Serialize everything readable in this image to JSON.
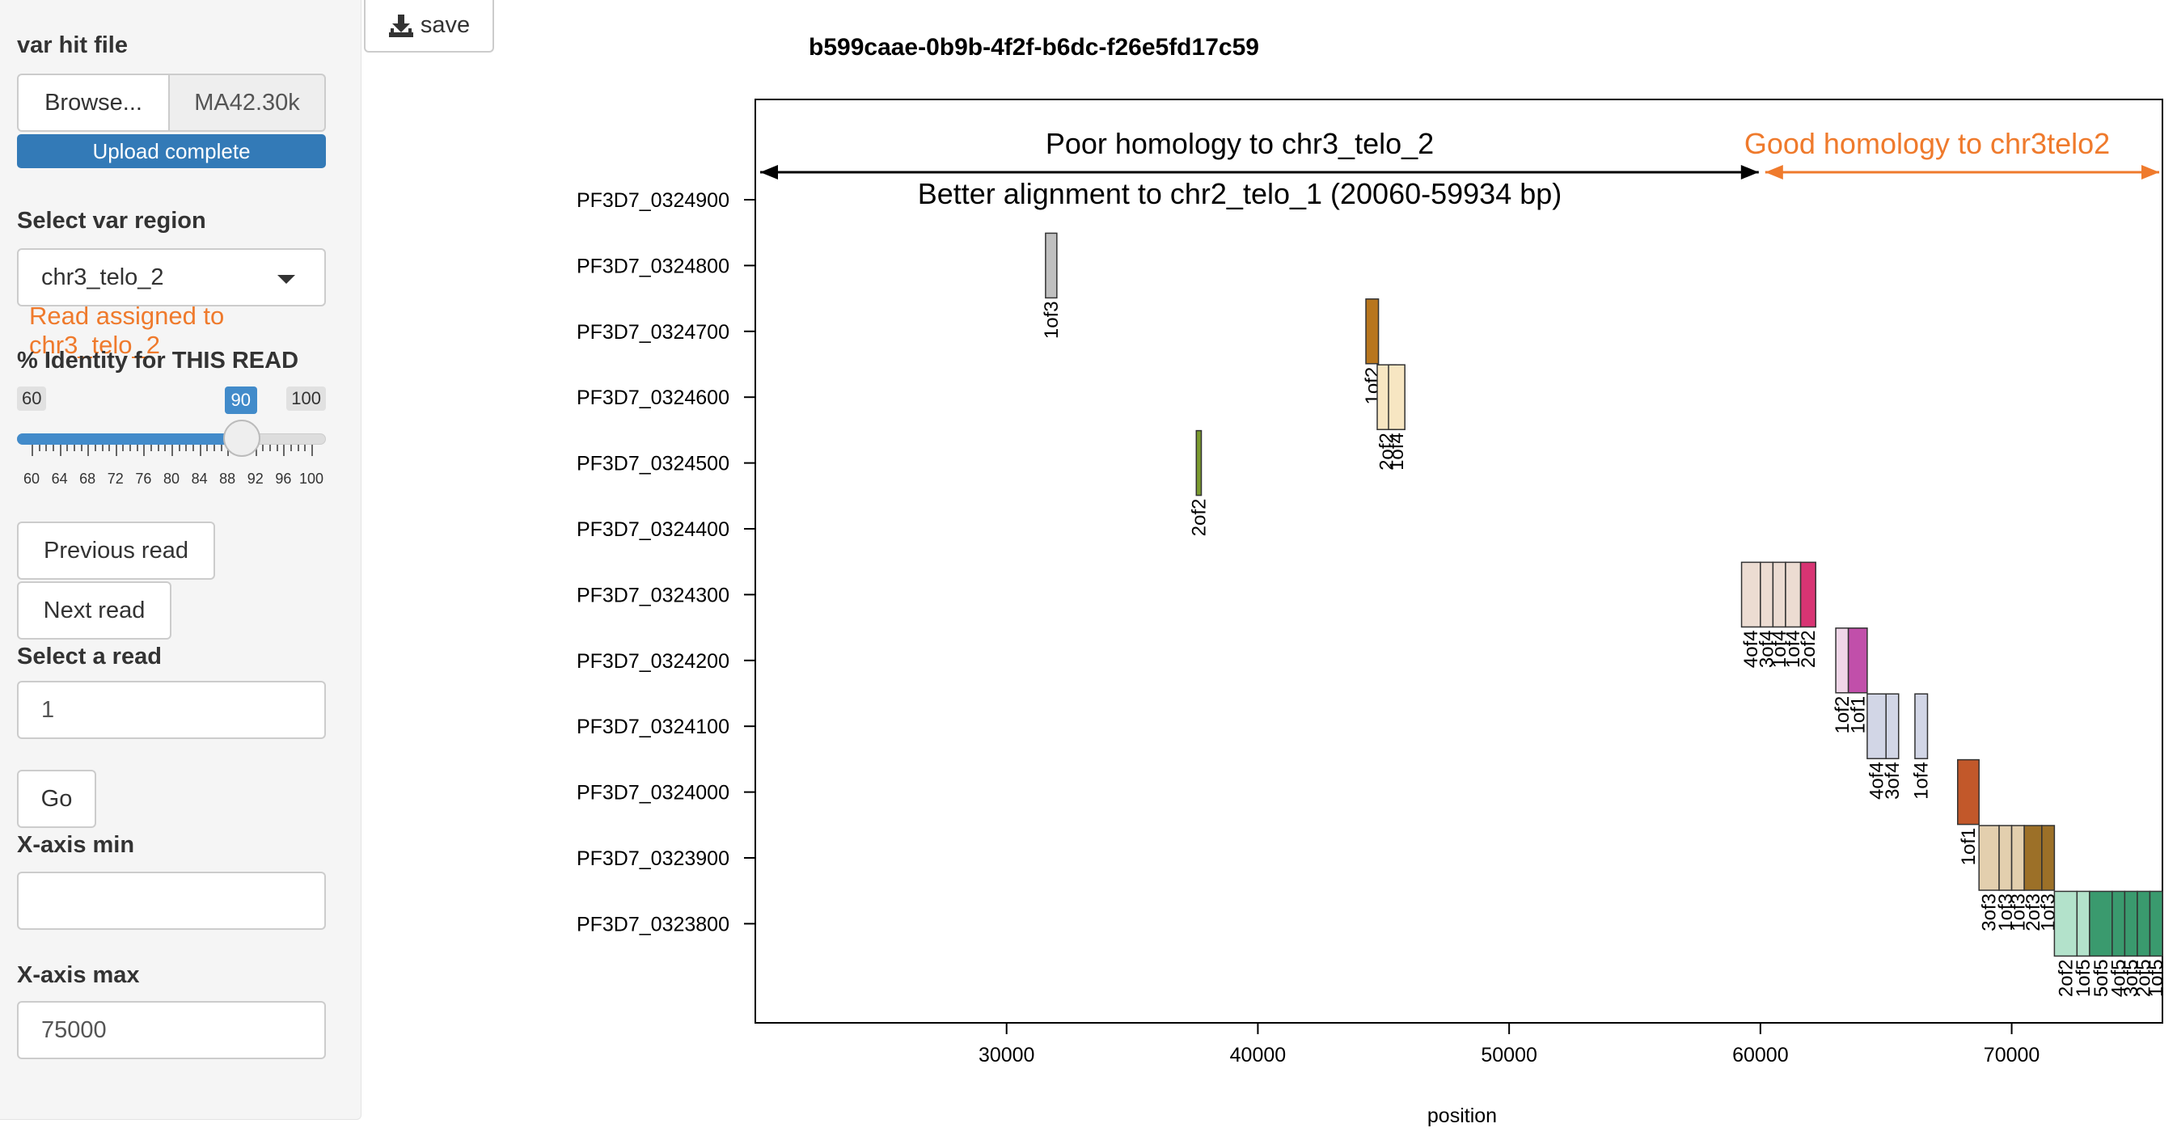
{
  "sidebar": {
    "file_label": "var hit file",
    "browse_label": "Browse...",
    "file_name": "MA42.30k",
    "upload_status": "Upload complete",
    "region_label": "Select var region",
    "region_value": "chr3_telo_2",
    "region_note": "Read assigned to chr3_telo_2",
    "identity_label": "% Identity for THIS READ",
    "slider": {
      "min": "60",
      "max": "100",
      "value": "90",
      "value_num": 90,
      "min_num": 60,
      "max_num": 100,
      "tick_labels": [
        "60",
        "64",
        "68",
        "72",
        "76",
        "80",
        "84",
        "88",
        "92",
        "96",
        "100"
      ]
    },
    "prev_label": "Previous read",
    "next_label": "Next read",
    "read_label": "Select a read",
    "read_value": "1",
    "go_label": "Go",
    "xmin_label": "X-axis min",
    "xmin_value": "",
    "xmax_label": "X-axis max",
    "xmax_value": "75000"
  },
  "toolbar": {
    "save_label": "save",
    "save_icon": "download-icon"
  },
  "chart_data": {
    "type": "bar",
    "title": "b599caae-0b9b-4f2f-b6dc-f26e5fd17c59",
    "xlabel": "position",
    "ylabel": "",
    "xlim": [
      20000,
      76000
    ],
    "xticks": [
      30000,
      40000,
      50000,
      60000,
      70000
    ],
    "genes": [
      "PF3D7_0324900",
      "PF3D7_0324800",
      "PF3D7_0324700",
      "PF3D7_0324600",
      "PF3D7_0324500",
      "PF3D7_0324400",
      "PF3D7_0324300",
      "PF3D7_0324200",
      "PF3D7_0324100",
      "PF3D7_0324000",
      "PF3D7_0323900",
      "PF3D7_0323800"
    ],
    "annotations": {
      "left_top": "Poor homology to chr3_telo_2",
      "left_bottom": "Better alignment to chr2_telo_1 (20060-59934 bp)",
      "right": "Good homology to chr3telo2",
      "left_arrow": [
        20000,
        59934
      ],
      "right_arrow": [
        59934,
        76000
      ],
      "left_color": "#000000",
      "right_color": "#ef7a2c"
    },
    "hits": [
      {
        "gene": "PF3D7_0324800",
        "start": 31550,
        "end": 32000,
        "color": "#c0c0c0",
        "label": "1of3"
      },
      {
        "gene": "PF3D7_0324700",
        "start": 44300,
        "end": 44800,
        "color": "#b8761e",
        "label": "1of2"
      },
      {
        "gene": "PF3D7_0324600",
        "start": 44750,
        "end": 45500,
        "color": "#f7e6c2",
        "label": "2of2"
      },
      {
        "gene": "PF3D7_0324600",
        "start": 45200,
        "end": 45850,
        "color": "#f7e6c2",
        "label": "1of4"
      },
      {
        "gene": "PF3D7_0324500",
        "start": 37550,
        "end": 37750,
        "color": "#7a9a2e",
        "label": "2of2"
      },
      {
        "gene": "PF3D7_0324300",
        "start": 59250,
        "end": 60000,
        "color": "#ecdcd2",
        "label": "4of4"
      },
      {
        "gene": "PF3D7_0324300",
        "start": 60000,
        "end": 60500,
        "color": "#ecdcd2",
        "label": "3of4"
      },
      {
        "gene": "PF3D7_0324300",
        "start": 60500,
        "end": 61000,
        "color": "#ecdcd2",
        "label": "1of4"
      },
      {
        "gene": "PF3D7_0324300",
        "start": 61000,
        "end": 61600,
        "color": "#ecdcd2",
        "label": "1of4"
      },
      {
        "gene": "PF3D7_0324300",
        "start": 61600,
        "end": 62200,
        "color": "#d83473",
        "label": "2of2"
      },
      {
        "gene": "PF3D7_0324200",
        "start": 63000,
        "end": 63500,
        "color": "#efd6e8",
        "label": "1of2"
      },
      {
        "gene": "PF3D7_0324200",
        "start": 63500,
        "end": 64250,
        "color": "#c14faa",
        "label": "1of1"
      },
      {
        "gene": "PF3D7_0324100",
        "start": 64250,
        "end": 65000,
        "color": "#d2d6e6",
        "label": "4of4"
      },
      {
        "gene": "PF3D7_0324100",
        "start": 65000,
        "end": 65500,
        "color": "#d2d6e6",
        "label": "3of4"
      },
      {
        "gene": "PF3D7_0324100",
        "start": 66150,
        "end": 66650,
        "color": "#d2d6e6",
        "label": "1of4"
      },
      {
        "gene": "PF3D7_0324000",
        "start": 67850,
        "end": 68700,
        "color": "#c2582a",
        "label": "1of1"
      },
      {
        "gene": "PF3D7_0323900",
        "start": 68700,
        "end": 69500,
        "color": "#e3cfae",
        "label": "3of3"
      },
      {
        "gene": "PF3D7_0323900",
        "start": 69500,
        "end": 70000,
        "color": "#e3cfae",
        "label": "1of3"
      },
      {
        "gene": "PF3D7_0323900",
        "start": 70000,
        "end": 70500,
        "color": "#e3cfae",
        "label": "1of3"
      },
      {
        "gene": "PF3D7_0323900",
        "start": 70500,
        "end": 71200,
        "color": "#9c7028",
        "label": "2of3"
      },
      {
        "gene": "PF3D7_0323900",
        "start": 71200,
        "end": 71700,
        "color": "#9c7028",
        "label": "1of3"
      },
      {
        "gene": "PF3D7_0323800",
        "start": 71700,
        "end": 72600,
        "color": "#b3e2cb",
        "label": "2of2"
      },
      {
        "gene": "PF3D7_0323800",
        "start": 72600,
        "end": 73100,
        "color": "#b3e2cb",
        "label": "1of5"
      },
      {
        "gene": "PF3D7_0323800",
        "start": 73100,
        "end": 74000,
        "color": "#3a9a6e",
        "label": "5of5"
      },
      {
        "gene": "PF3D7_0323800",
        "start": 74000,
        "end": 74500,
        "color": "#3a9a6e",
        "label": "4of5"
      },
      {
        "gene": "PF3D7_0323800",
        "start": 74500,
        "end": 75000,
        "color": "#3a9a6e",
        "label": "3of5"
      },
      {
        "gene": "PF3D7_0323800",
        "start": 75000,
        "end": 75500,
        "color": "#3a9a6e",
        "label": "2of5"
      },
      {
        "gene": "PF3D7_0323800",
        "start": 75500,
        "end": 76000,
        "color": "#3a9a6e",
        "label": "1of5"
      }
    ]
  }
}
